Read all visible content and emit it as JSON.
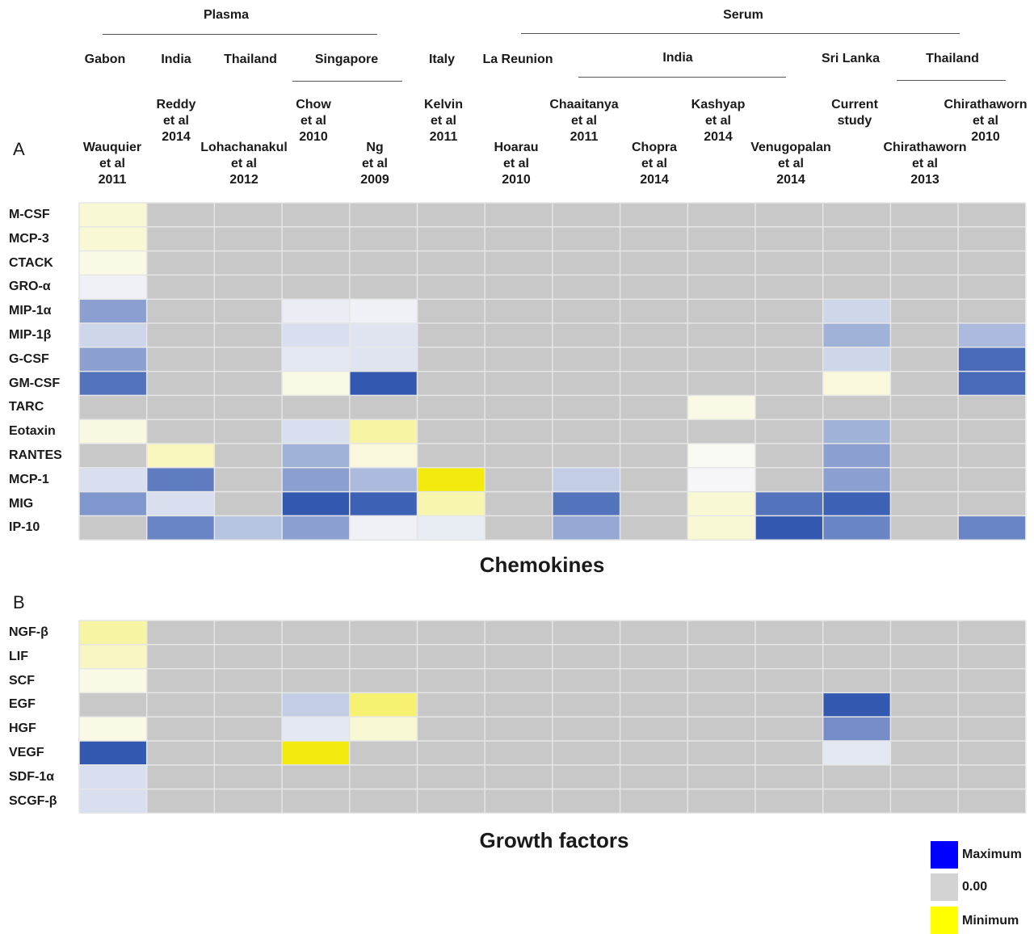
{
  "top_groups": [
    "Plasma",
    "Serum"
  ],
  "countries": [
    "Gabon",
    "India",
    "Thailand",
    "Singapore",
    "Italy",
    "La Reunion",
    "India",
    "Sri Lanka",
    "Thailand"
  ],
  "studies": [
    "Wauquier\net al\n2011",
    "Reddy\net al\n2014",
    "Lohachanakul\net al\n2012",
    "Chow\net al\n2010",
    "Ng\net al\n2009",
    "Kelvin\net al\n2011",
    "Hoarau\net al\n2010",
    "Chaaitanya\net al\n2011",
    "Chopra\net al\n2014",
    "Kashyap\net al\n2014",
    "Venugopalan\net al\n2014",
    "Current\nstudy",
    "Chirathaworn\net al\n2013",
    "Chirathaworn\net al\n2010"
  ],
  "panel_a": {
    "letter": "A",
    "title": "Chemokines"
  },
  "panel_b": {
    "letter": "B",
    "title": "Growth factors"
  },
  "legend": {
    "max_label": "Maximum",
    "zero_label": "0.00",
    "min_label": "Minimum",
    "colors": {
      "max": "#0000ff",
      "zero": "#d3d3d3",
      "min": "#ffff00"
    }
  },
  "chart_data": [
    {
      "type": "heatmap",
      "title": "Chemokines",
      "columns": [
        "Wauquier et al 2011",
        "Reddy et al 2014",
        "Lohachanakul et al 2012",
        "Chow et al 2010",
        "Ng et al 2009",
        "Kelvin et al 2011",
        "Hoarau et al 2010",
        "Chaaitanya et al 2011",
        "Chopra et al 2014",
        "Kashyap et al 2014",
        "Venugopalan et al 2014",
        "Current study",
        "Chirathaworn et al 2013",
        "Chirathaworn et al 2010"
      ],
      "rows": [
        "M-CSF",
        "MCP-3",
        "CTACK",
        "GRO-α",
        "MIP-1α",
        "MIP-1β",
        "G-CSF",
        "GM-CSF",
        "TARC",
        "Eotaxin",
        "RANTES",
        "MCP-1",
        "MIG",
        "IP-10"
      ],
      "scale": "null = not measured; -1 = minimum (yellow); 0 = 0.00; +1 = maximum (blue)",
      "values": [
        [
          -0.15,
          null,
          null,
          null,
          null,
          null,
          null,
          null,
          null,
          null,
          null,
          null,
          null,
          null
        ],
        [
          -0.15,
          null,
          null,
          null,
          null,
          null,
          null,
          null,
          null,
          null,
          null,
          null,
          null,
          null
        ],
        [
          -0.08,
          null,
          null,
          null,
          null,
          null,
          null,
          null,
          null,
          null,
          null,
          null,
          null,
          null
        ],
        [
          0.05,
          null,
          null,
          null,
          null,
          null,
          null,
          null,
          null,
          null,
          null,
          null,
          null,
          null
        ],
        [
          0.5,
          null,
          null,
          0.07,
          0.05,
          null,
          null,
          null,
          null,
          null,
          null,
          0.2,
          null,
          null
        ],
        [
          0.2,
          null,
          null,
          0.15,
          0.12,
          null,
          null,
          null,
          null,
          null,
          null,
          0.4,
          null,
          0.35
        ],
        [
          0.5,
          null,
          null,
          0.1,
          0.12,
          null,
          null,
          null,
          null,
          null,
          null,
          0.2,
          null,
          0.8
        ],
        [
          0.75,
          null,
          null,
          -0.08,
          0.9,
          null,
          null,
          null,
          null,
          null,
          null,
          -0.12,
          null,
          0.8
        ],
        [
          null,
          null,
          null,
          null,
          null,
          null,
          null,
          null,
          null,
          -0.08,
          null,
          null,
          null,
          null
        ],
        [
          -0.1,
          null,
          null,
          0.15,
          -0.35,
          null,
          null,
          null,
          null,
          null,
          null,
          0.4,
          null,
          null
        ],
        [
          null,
          -0.25,
          null,
          0.4,
          -0.12,
          null,
          null,
          null,
          null,
          -0.02,
          null,
          0.5,
          null,
          null
        ],
        [
          0.15,
          0.7,
          null,
          0.5,
          0.35,
          -0.95,
          null,
          0.25,
          null,
          0.02,
          null,
          0.5,
          null,
          null
        ],
        [
          0.55,
          0.15,
          null,
          0.9,
          0.85,
          -0.3,
          null,
          0.75,
          null,
          -0.15,
          0.75,
          0.85,
          null,
          null
        ],
        [
          null,
          0.65,
          0.3,
          0.5,
          0.05,
          0.08,
          null,
          0.45,
          null,
          -0.15,
          0.9,
          0.65,
          null,
          0.65
        ]
      ]
    },
    {
      "type": "heatmap",
      "title": "Growth factors",
      "columns": [
        "Wauquier et al 2011",
        "Reddy et al 2014",
        "Lohachanakul et al 2012",
        "Chow et al 2010",
        "Ng et al 2009",
        "Kelvin et al 2011",
        "Hoarau et al 2010",
        "Chaaitanya et al 2011",
        "Chopra et al 2014",
        "Kashyap et al 2014",
        "Venugopalan et al 2014",
        "Current study",
        "Chirathaworn et al 2013",
        "Chirathaworn et al 2010"
      ],
      "rows": [
        "NGF-β",
        "LIF",
        "SCF",
        "EGF",
        "HGF",
        "VEGF",
        "SDF-1α",
        "SCGF-β"
      ],
      "scale": "null = not measured; -1 = minimum (yellow); 0 = 0.00; +1 = maximum (blue)",
      "values": [
        [
          -0.35,
          null,
          null,
          null,
          null,
          null,
          null,
          null,
          null,
          null,
          null,
          null,
          null,
          null
        ],
        [
          -0.22,
          null,
          null,
          null,
          null,
          null,
          null,
          null,
          null,
          null,
          null,
          null,
          null,
          null
        ],
        [
          -0.08,
          null,
          null,
          null,
          null,
          null,
          null,
          null,
          null,
          null,
          null,
          null,
          null,
          null
        ],
        [
          null,
          null,
          null,
          0.25,
          -0.55,
          null,
          null,
          null,
          null,
          null,
          null,
          0.9,
          null,
          null
        ],
        [
          -0.08,
          null,
          null,
          0.1,
          -0.15,
          null,
          null,
          null,
          null,
          null,
          null,
          0.6,
          null,
          null
        ],
        [
          0.9,
          null,
          null,
          -0.95,
          null,
          null,
          null,
          null,
          null,
          null,
          null,
          0.1,
          null,
          null
        ],
        [
          0.15,
          null,
          null,
          null,
          null,
          null,
          null,
          null,
          null,
          null,
          null,
          null,
          null,
          null
        ],
        [
          0.15,
          null,
          null,
          null,
          null,
          null,
          null,
          null,
          null,
          null,
          null,
          null,
          null,
          null
        ]
      ]
    }
  ]
}
